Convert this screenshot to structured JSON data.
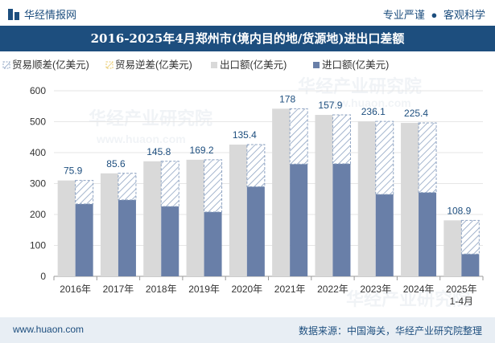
{
  "header": {
    "brand": "华经情报网",
    "tag1": "专业严谨",
    "tag2": "客观科学",
    "separator": "●"
  },
  "watermark": {
    "line1": "华经产业研究院",
    "line2": "www.huaon.com"
  },
  "footer": {
    "url": "www.huaon.com",
    "source": "数据来源：中国海关，华经产业研究院整理"
  },
  "colors": {
    "export": "#d9d9d9",
    "import": "#697fa8",
    "surplus_hatch": "#8ea3c2",
    "deficit_hatch": "#e8c96a",
    "brand": "#1d4e7e"
  },
  "chart_data": {
    "type": "bar",
    "title": "2016-2025年4月郑州市(境内目的地/货源地)进出口差额",
    "categories": [
      "2016年",
      "2017年",
      "2018年",
      "2019年",
      "2020年",
      "2021年",
      "2022年",
      "2023年",
      "2024年",
      "2025年\n1-4月"
    ],
    "series": [
      {
        "name": "贸易顺差(亿美元)",
        "values": [
          75.9,
          85.6,
          145.8,
          169.2,
          135.4,
          178,
          157.9,
          236.1,
          225.4,
          108.9
        ]
      },
      {
        "name": "贸易逆差(亿美元)",
        "values": [
          0,
          0,
          0,
          0,
          0,
          0,
          0,
          0,
          0,
          0
        ]
      },
      {
        "name": "出口额(亿美元)",
        "values": [
          310,
          333,
          372,
          377,
          426,
          542,
          522,
          501,
          496,
          181
        ]
      },
      {
        "name": "进口额(亿美元)",
        "values": [
          234,
          247,
          226,
          208,
          290,
          363,
          364,
          265,
          271,
          72
        ]
      }
    ],
    "data_labels": [
      "75.9",
      "85.6",
      "145.8",
      "169.2",
      "135.4",
      "178",
      "157.9",
      "236.1",
      "225.4",
      "108.9"
    ],
    "ylim": [
      0,
      600
    ],
    "yticks": [
      0,
      100,
      200,
      300,
      400,
      500,
      600
    ],
    "grid": true,
    "legend_position": "top-left"
  }
}
